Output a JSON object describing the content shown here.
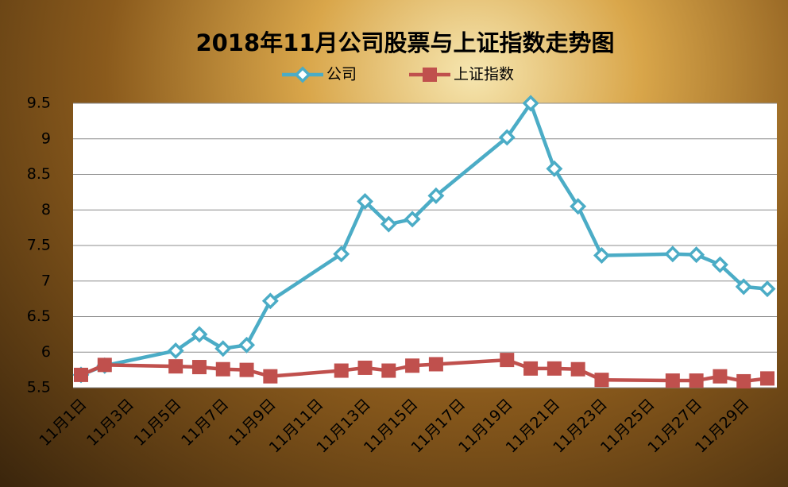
{
  "chart_data": {
    "type": "line",
    "title": "2018年11月公司股票与上证指数走势图",
    "x": [
      1,
      2,
      5,
      6,
      7,
      8,
      9,
      12,
      13,
      14,
      15,
      16,
      19,
      20,
      21,
      22,
      23,
      26,
      27,
      28,
      29,
      30
    ],
    "xlim": [
      1,
      30
    ],
    "xticks": [
      {
        "value": 1,
        "label": "11月1日"
      },
      {
        "value": 3,
        "label": "11月3日"
      },
      {
        "value": 5,
        "label": "11月5日"
      },
      {
        "value": 7,
        "label": "11月7日"
      },
      {
        "value": 9,
        "label": "11月9日"
      },
      {
        "value": 11,
        "label": "11月11日"
      },
      {
        "value": 13,
        "label": "11月13日"
      },
      {
        "value": 15,
        "label": "11月15日"
      },
      {
        "value": 17,
        "label": "11月17日"
      },
      {
        "value": 19,
        "label": "11月19日"
      },
      {
        "value": 21,
        "label": "11月21日"
      },
      {
        "value": 23,
        "label": "11月23日"
      },
      {
        "value": 25,
        "label": "11月25日"
      },
      {
        "value": 27,
        "label": "11月27日"
      },
      {
        "value": 29,
        "label": "11月29日"
      }
    ],
    "ylim": [
      5.5,
      9.5
    ],
    "yticks": [
      5.5,
      6,
      6.5,
      7,
      7.5,
      8,
      8.5,
      9,
      9.5
    ],
    "grid": true,
    "series": [
      {
        "name": "公司",
        "color": "#4bacc6",
        "marker": "diamond",
        "values": [
          5.68,
          5.81,
          6.02,
          6.25,
          6.05,
          6.1,
          6.72,
          7.38,
          8.12,
          7.8,
          7.87,
          8.2,
          9.02,
          9.5,
          8.58,
          8.05,
          7.36,
          7.38,
          7.37,
          7.23,
          6.92,
          6.89
        ]
      },
      {
        "name": "上证指数",
        "color": "#c0504d",
        "marker": "square",
        "values": [
          5.68,
          5.82,
          5.8,
          5.79,
          5.76,
          5.75,
          5.66,
          5.74,
          5.78,
          5.74,
          5.81,
          5.83,
          5.89,
          5.77,
          5.77,
          5.76,
          5.61,
          5.6,
          5.6,
          5.66,
          5.59,
          5.63
        ]
      }
    ]
  }
}
